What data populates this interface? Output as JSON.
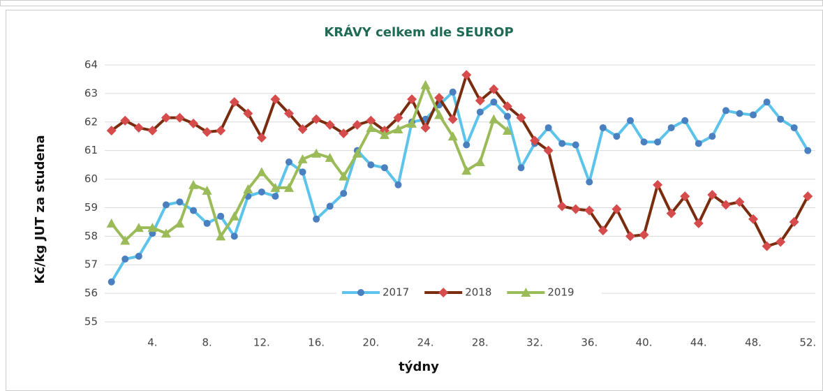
{
  "chart_data": {
    "type": "line",
    "title": "KRÁVY  celkem dle SEUROP",
    "y_label": "Kč/kg JUT za studena",
    "x_label": "týdny",
    "categories": [
      null,
      null,
      null,
      "4.",
      null,
      null,
      null,
      "8.",
      null,
      null,
      null,
      "12.",
      null,
      null,
      null,
      "16.",
      null,
      null,
      null,
      "20.",
      null,
      null,
      null,
      "24.",
      null,
      null,
      null,
      "28.",
      null,
      null,
      null,
      "32.",
      null,
      null,
      null,
      "36.",
      null,
      null,
      null,
      "40.",
      null,
      null,
      null,
      "44.",
      null,
      null,
      null,
      "48.",
      null,
      null,
      null,
      "52."
    ],
    "ylim": [
      55,
      64
    ],
    "yticks": [
      55,
      56,
      57,
      58,
      59,
      60,
      61,
      62,
      63,
      64
    ],
    "grid": true,
    "legend": "bottom",
    "series": [
      {
        "name": "2017",
        "color": "#5cc3ea",
        "marker": "circle",
        "marker_color": "#4a7fc0",
        "values": [
          56.4,
          57.2,
          57.3,
          58.1,
          59.1,
          59.2,
          58.9,
          58.45,
          58.7,
          58.0,
          59.4,
          59.55,
          59.4,
          60.6,
          60.25,
          58.6,
          59.05,
          59.5,
          61.0,
          60.5,
          60.4,
          59.8,
          62.0,
          62.1,
          62.6,
          63.05,
          61.2,
          62.35,
          62.7,
          62.2,
          60.4,
          61.25,
          61.8,
          61.25,
          61.2,
          59.9,
          61.8,
          61.5,
          62.05,
          61.3,
          61.3,
          61.8,
          62.05,
          61.25,
          61.5,
          62.4,
          62.3,
          62.25,
          62.7,
          62.1,
          61.8,
          61.0
        ]
      },
      {
        "name": "2018",
        "color": "#7a2c0e",
        "marker": "diamond",
        "marker_color": "#d64b4b",
        "values": [
          61.7,
          62.05,
          61.8,
          61.7,
          62.15,
          62.15,
          61.95,
          61.65,
          61.7,
          62.7,
          62.3,
          61.45,
          62.8,
          62.3,
          61.75,
          62.1,
          61.9,
          61.6,
          61.9,
          62.05,
          61.7,
          62.15,
          62.8,
          61.8,
          62.85,
          62.1,
          63.65,
          62.75,
          63.15,
          62.55,
          62.15,
          61.35,
          61.0,
          59.05,
          58.95,
          58.9,
          58.2,
          58.95,
          58.0,
          58.05,
          59.8,
          58.8,
          59.4,
          58.45,
          59.45,
          59.1,
          59.2,
          58.6,
          57.65,
          57.8,
          58.5,
          59.4
        ]
      },
      {
        "name": "2019",
        "color": "#9bbb59",
        "marker": "triangle",
        "marker_color": "#9bbb59",
        "values": [
          58.45,
          57.85,
          58.3,
          58.3,
          58.1,
          58.45,
          59.8,
          59.6,
          58.0,
          58.7,
          59.65,
          60.25,
          59.7,
          59.7,
          60.7,
          60.9,
          60.75,
          60.1,
          60.9,
          61.8,
          61.55,
          61.75,
          61.95,
          63.3,
          62.25,
          61.5,
          60.3,
          60.6,
          62.1,
          61.7,
          null,
          null,
          null,
          null,
          null,
          null,
          null,
          null,
          null,
          null,
          null,
          null,
          null,
          null,
          null,
          null,
          null,
          null,
          null,
          null,
          null,
          null
        ]
      }
    ]
  }
}
